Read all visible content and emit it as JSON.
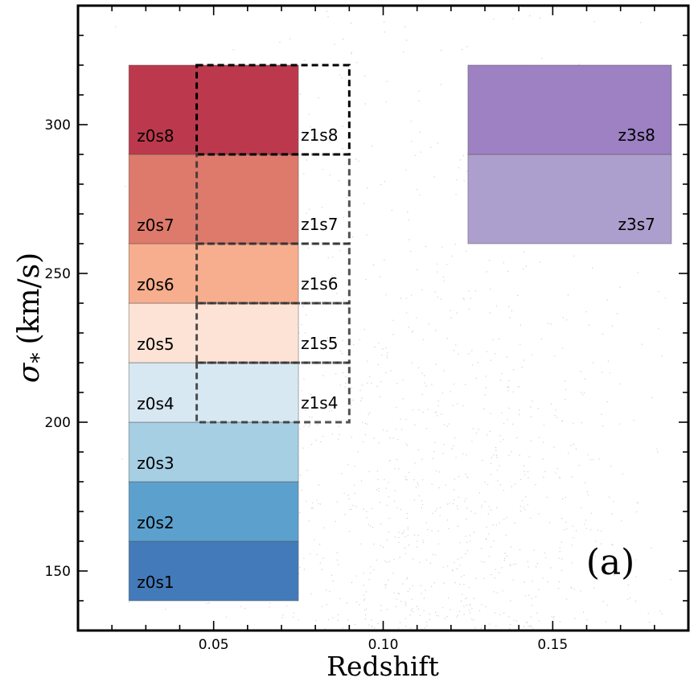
{
  "chart_data": {
    "type": "scatter",
    "title": "",
    "xlabel": "Redshift",
    "ylabel_symbol": "σ",
    "ylabel_subscript": "*",
    "ylabel_unit": "(km/s)",
    "panel_tag": "(a)",
    "xlim": [
      0.01,
      0.19
    ],
    "ylim": [
      130,
      340
    ],
    "x_ticks": [
      0.05,
      0.1,
      0.15
    ],
    "x_tick_labels": [
      "0.05",
      "0.10",
      "0.15"
    ],
    "y_ticks": [
      150,
      200,
      250,
      300
    ],
    "y_tick_labels": [
      "150",
      "200",
      "250",
      "300"
    ],
    "grid": false,
    "background_points": {
      "description_of_density": "dense grey scatter of galaxies",
      "x_range": [
        0.02,
        0.185
      ],
      "y_range": [
        130,
        340
      ],
      "density_peak_x": 0.115,
      "color": "#555555"
    },
    "bins": [
      {
        "name": "z0s1",
        "x": [
          0.025,
          0.075
        ],
        "y": [
          140,
          160
        ],
        "color": "#2f6db3",
        "style": "filled"
      },
      {
        "name": "z0s2",
        "x": [
          0.025,
          0.075
        ],
        "y": [
          160,
          180
        ],
        "color": "#4a97c9",
        "style": "filled"
      },
      {
        "name": "z0s3",
        "x": [
          0.025,
          0.075
        ],
        "y": [
          180,
          200
        ],
        "color": "#9ccae1",
        "style": "filled"
      },
      {
        "name": "z0s4",
        "x": [
          0.025,
          0.075
        ],
        "y": [
          200,
          220
        ],
        "color": "#d3e6f1",
        "style": "filled"
      },
      {
        "name": "z0s5",
        "x": [
          0.025,
          0.075
        ],
        "y": [
          220,
          240
        ],
        "color": "#fde0d1",
        "style": "filled"
      },
      {
        "name": "z0s6",
        "x": [
          0.025,
          0.075
        ],
        "y": [
          240,
          260
        ],
        "color": "#f5a582",
        "style": "filled"
      },
      {
        "name": "z0s7",
        "x": [
          0.025,
          0.075
        ],
        "y": [
          260,
          290
        ],
        "color": "#da6b5b",
        "style": "filled"
      },
      {
        "name": "z0s8",
        "x": [
          0.025,
          0.075
        ],
        "y": [
          290,
          320
        ],
        "color": "#b5243a",
        "style": "filled"
      },
      {
        "name": "z1s4",
        "x": [
          0.045,
          0.09
        ],
        "y": [
          200,
          220
        ],
        "color": "#333333",
        "style": "dashed"
      },
      {
        "name": "z1s5",
        "x": [
          0.045,
          0.09
        ],
        "y": [
          220,
          240
        ],
        "color": "#333333",
        "style": "dashed"
      },
      {
        "name": "z1s6",
        "x": [
          0.045,
          0.09
        ],
        "y": [
          240,
          260
        ],
        "color": "#333333",
        "style": "dashed"
      },
      {
        "name": "z1s7",
        "x": [
          0.045,
          0.09
        ],
        "y": [
          260,
          290
        ],
        "color": "#333333",
        "style": "dashed"
      },
      {
        "name": "z1s8",
        "x": [
          0.045,
          0.09
        ],
        "y": [
          290,
          320
        ],
        "color": "#000000",
        "style": "dashed"
      },
      {
        "name": "z3s7",
        "x": [
          0.125,
          0.185
        ],
        "y": [
          260,
          290
        ],
        "color": "#a495c8",
        "style": "filled"
      },
      {
        "name": "z3s8",
        "x": [
          0.125,
          0.185
        ],
        "y": [
          290,
          320
        ],
        "color": "#9273bd",
        "style": "filled"
      }
    ]
  }
}
